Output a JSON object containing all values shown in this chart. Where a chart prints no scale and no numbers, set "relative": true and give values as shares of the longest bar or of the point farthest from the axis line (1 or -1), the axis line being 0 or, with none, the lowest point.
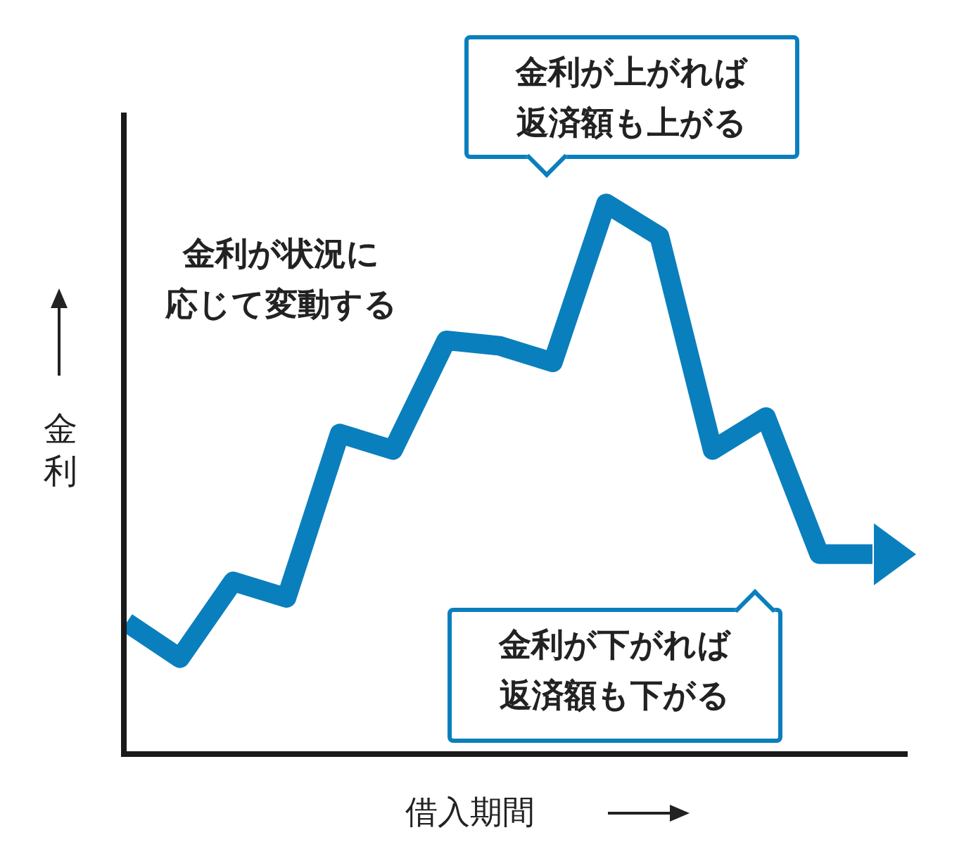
{
  "chart_data": {
    "type": "line",
    "relative": true,
    "xlabel": "借入期間",
    "ylabel": "金利",
    "categories": [
      null,
      null,
      null,
      null,
      null,
      null,
      null,
      null,
      null,
      null,
      null,
      null,
      null,
      null,
      null
    ],
    "series": [
      {
        "color": "#0a7fbd",
        "values": [
          0.235,
          0.17,
          0.31,
          0.28,
          0.58,
          0.55,
          0.75,
          0.74,
          0.71,
          1,
          0.94,
          0.55,
          0.61,
          0.36,
          0.36
        ]
      }
    ],
    "annotations": [
      "金利が状況に応じて変動する",
      "金利が上がれば返済額も上がる",
      "金利が下がれば返済額も下がる"
    ],
    "grid": false,
    "legend": false,
    "marker": "none",
    "line_style": "solid"
  }
}
